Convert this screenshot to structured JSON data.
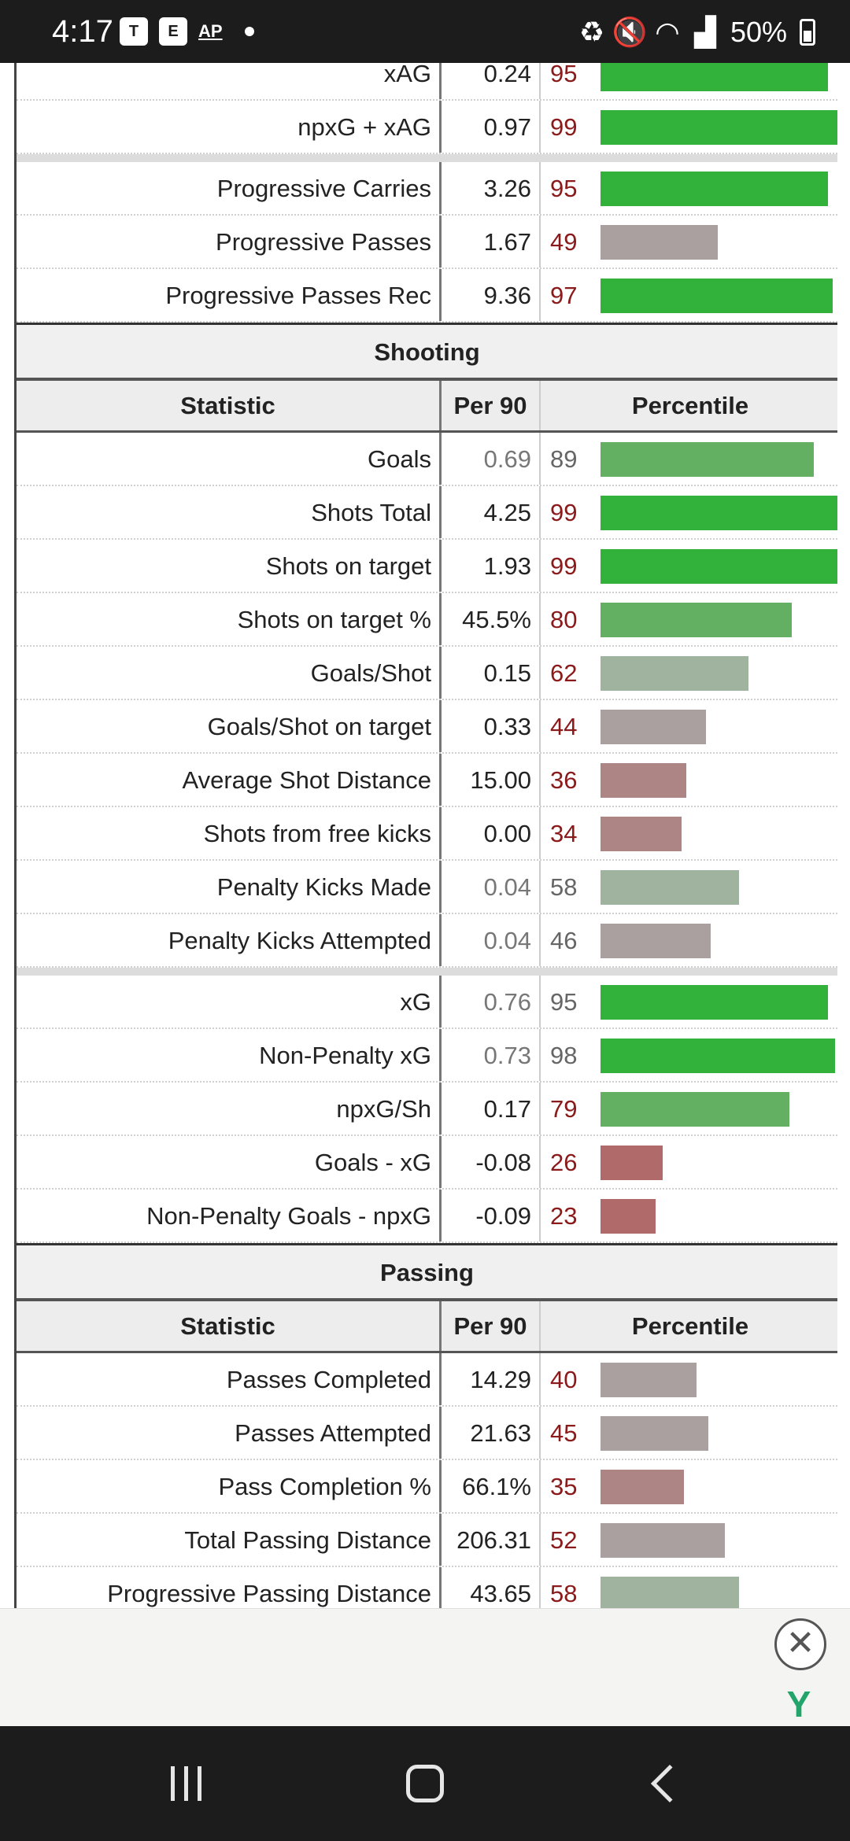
{
  "status_bar": {
    "time": "4:17",
    "app_icons": [
      "teams-icon",
      "reader-icon",
      "ap-news-icon"
    ],
    "ap_label": "AP",
    "battery": "50%",
    "system_icons": [
      "battery-saver-icon",
      "mute-icon",
      "wifi-icon",
      "signal-icon"
    ]
  },
  "top_rows": [
    {
      "statistic": "xAG",
      "per90": "0.24",
      "percentile": 95,
      "muted": false
    },
    {
      "statistic": "npxG + xAG",
      "per90": "0.97",
      "percentile": 99,
      "muted": false
    }
  ],
  "progressive_rows": [
    {
      "statistic": "Progressive Carries",
      "per90": "3.26",
      "percentile": 95,
      "muted": false
    },
    {
      "statistic": "Progressive Passes",
      "per90": "1.67",
      "percentile": 49,
      "muted": false
    },
    {
      "statistic": "Progressive Passes Rec",
      "per90": "9.36",
      "percentile": 97,
      "muted": false
    }
  ],
  "shooting": {
    "title": "Shooting",
    "header": {
      "statistic": "Statistic",
      "per90": "Per 90",
      "percentile": "Percentile"
    },
    "rows": [
      {
        "statistic": "Goals",
        "per90": "0.69",
        "percentile": 89,
        "muted": true
      },
      {
        "statistic": "Shots Total",
        "per90": "4.25",
        "percentile": 99,
        "muted": false
      },
      {
        "statistic": "Shots on target",
        "per90": "1.93",
        "percentile": 99,
        "muted": false
      },
      {
        "statistic": "Shots on target %",
        "per90": "45.5%",
        "percentile": 80,
        "muted": false
      },
      {
        "statistic": "Goals/Shot",
        "per90": "0.15",
        "percentile": 62,
        "muted": false
      },
      {
        "statistic": "Goals/Shot on target",
        "per90": "0.33",
        "percentile": 44,
        "muted": false
      },
      {
        "statistic": "Average Shot Distance",
        "per90": "15.00",
        "percentile": 36,
        "muted": false
      },
      {
        "statistic": "Shots from free kicks",
        "per90": "0.00",
        "percentile": 34,
        "muted": false
      },
      {
        "statistic": "Penalty Kicks Made",
        "per90": "0.04",
        "percentile": 58,
        "muted": true
      },
      {
        "statistic": "Penalty Kicks Attempted",
        "per90": "0.04",
        "percentile": 46,
        "muted": true
      }
    ],
    "xg_rows": [
      {
        "statistic": "xG",
        "per90": "0.76",
        "percentile": 95,
        "muted": true
      },
      {
        "statistic": "Non-Penalty xG",
        "per90": "0.73",
        "percentile": 98,
        "muted": true
      },
      {
        "statistic": "npxG/Sh",
        "per90": "0.17",
        "percentile": 79,
        "muted": false
      },
      {
        "statistic": "Goals - xG",
        "per90": "-0.08",
        "percentile": 26,
        "muted": false
      },
      {
        "statistic": "Non-Penalty Goals - npxG",
        "per90": "-0.09",
        "percentile": 23,
        "muted": false
      }
    ]
  },
  "passing": {
    "title": "Passing",
    "header": {
      "statistic": "Statistic",
      "per90": "Per 90",
      "percentile": "Percentile"
    },
    "rows": [
      {
        "statistic": "Passes Completed",
        "per90": "14.29",
        "percentile": 40,
        "muted": false
      },
      {
        "statistic": "Passes Attempted",
        "per90": "21.63",
        "percentile": 45,
        "muted": false
      },
      {
        "statistic": "Pass Completion %",
        "per90": "66.1%",
        "percentile": 35,
        "muted": false
      },
      {
        "statistic": "Total Passing Distance",
        "per90": "206.31",
        "percentile": 52,
        "muted": false
      },
      {
        "statistic": "Progressive Passing Distance",
        "per90": "43.65",
        "percentile": 58,
        "muted": false
      }
    ]
  },
  "colors": {
    "pct_number": "#8b1a1a",
    "pct_number_muted": "#666666",
    "bar_high": "#32b23a",
    "bar_low": "#b06a6a",
    "bar_mid": "#a9a9a9"
  },
  "ad": {
    "close_icon": "close-circle-icon",
    "close_glyph": "✕",
    "logo_icon": "funnel-logo-icon",
    "logo_glyph": "Y"
  },
  "nav_bar": {
    "items": [
      "recents-icon",
      "home-icon",
      "back-icon"
    ]
  }
}
